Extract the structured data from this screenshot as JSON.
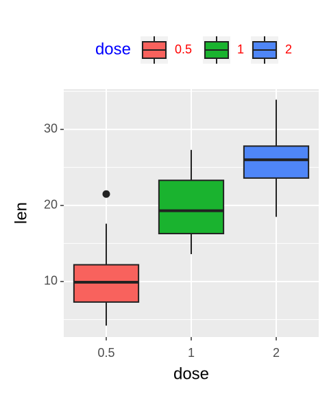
{
  "chart_data": {
    "type": "box",
    "x_label": "dose",
    "y_label": "len",
    "legend_title": "dose",
    "legend": "top",
    "categories": [
      "0.5",
      "1",
      "2"
    ],
    "series": [
      {
        "name": "0.5",
        "color": "#f8625d",
        "min": 4.2,
        "q1": 7.3,
        "median": 9.9,
        "q3": 12.2,
        "max": 17.6,
        "outliers": [
          21.5
        ]
      },
      {
        "name": "1",
        "color": "#1ab32f",
        "min": 13.6,
        "q1": 16.3,
        "median": 19.3,
        "q3": 23.3,
        "max": 27.3,
        "outliers": []
      },
      {
        "name": "2",
        "color": "#4f86f7",
        "min": 18.5,
        "q1": 23.6,
        "median": 26.0,
        "q3": 27.8,
        "max": 33.9,
        "outliers": []
      }
    ],
    "ylim": [
      2.7,
      35.3
    ],
    "yticks": [
      10,
      20,
      30
    ],
    "yminor": [
      5,
      15,
      25,
      35
    ],
    "grid": true
  }
}
